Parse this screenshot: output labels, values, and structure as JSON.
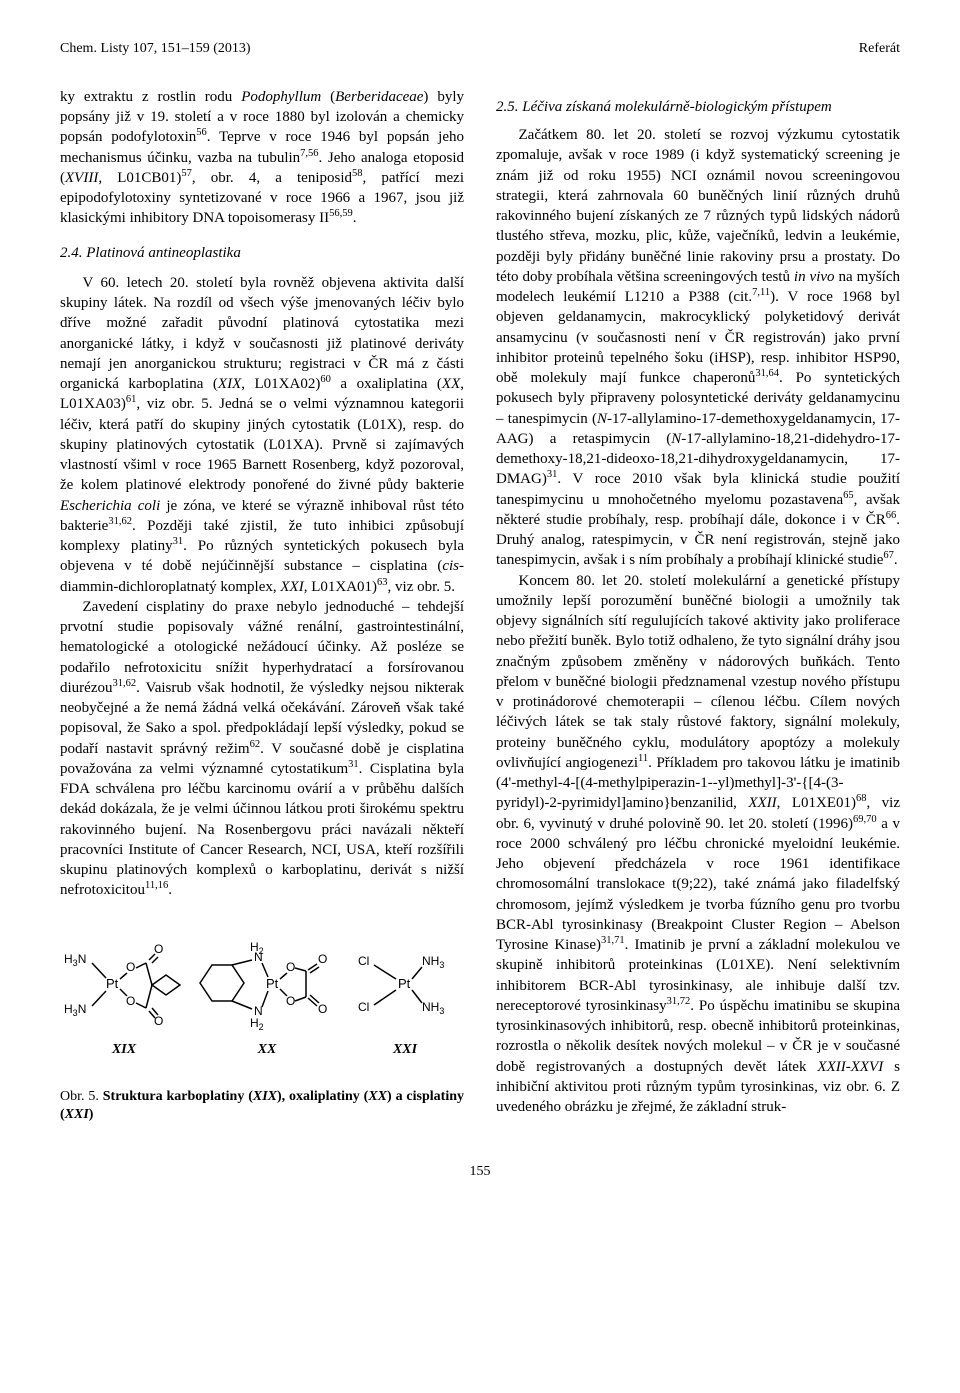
{
  "header": {
    "left": "Chem. Listy 107, 151–159 (2013)",
    "right": "Referát"
  },
  "left_column": {
    "para1_html": "ky extraktu z rostlin rodu <i>Podophyllum</i> (<i>Berberidaceae</i>) byly popsány již v 19. století a v roce 1880 byl izolován a chemicky popsán podofylotoxin<sup>56</sup>. Teprve v roce 1946 byl popsán jeho mechanismus účinku, vazba na tubulin<sup>7,56</sup>. Jeho analoga etoposid (<i>XVIII</i>, L01CB01)<sup>57</sup>, obr. 4, a teniposid<sup>58</sup>, patřící mezi epipodofylotoxiny syntetizované v roce 1966 a 1967, jsou již klasickými inhibitory DNA topoisomerasy II<sup>56,59</sup>.",
    "section24_num": "2.4.",
    "section24_title": "Platinová antineoplastika",
    "para2_html": "V 60. letech 20. století byla rovněž objevena aktivita další skupiny látek. Na rozdíl od všech výše jmenovaných léčiv bylo dříve možné zařadit původní platinová cytostatika mezi anorganické látky, i když v současnosti již platinové deriváty nemají jen anorganickou strukturu; registraci v ČR má z části organická karboplatina (<i>XIX</i>, L01XA02)<sup>60</sup> a oxaliplatina (<i>XX</i>, L01XA03)<sup>61</sup>, viz obr. 5. Jedná se o velmi významnou kategorii léčiv, která patří do skupiny jiných cytostatik (L01X), resp. do skupiny platinových cytostatik (L01XA). Prvně si zajímavých vlastností všiml v roce 1965 Barnett Rosenberg, když pozoroval, že kolem platinové elektrody ponořené do živné půdy bakterie <i>Escherichia coli</i> je zóna, ve které se výrazně inhiboval růst této bakterie<sup>31,62</sup>. Později také zjistil, že tuto inhibici způsobují komplexy platiny<sup>31</sup>. Po různých syntetických pokusech byla objevena v té době nejúčinnější substance – cisplatina (<i>cis</i>-diammin-dichloroplatnatý komplex, <i>XXI</i>, L01XA01)<sup>63</sup>, viz obr. 5.",
    "para3_html": "Zavedení cisplatiny do praxe nebylo jednoduché – tehdejší prvotní studie popisovaly vážné renální, gastrointestinální, hematologické a otologické nežádoucí účinky. Až posléze se podařilo nefrotoxicitu snížit hyperhydratací a forsírovanou diurézou<sup>31,62</sup>. Vaisrub však hodnotil, že výsledky nejsou nikterak neobyčejné a že nemá žádná velká očekávání. Zároveň však také popisoval, že Sako a spol. předpokládají lepší výsledky, pokud se podaří nastavit správný režim<sup>62</sup>. V současné době je cisplatina považována za velmi významné cytostatikum<sup>31</sup>. Cisplatina byla FDA schválena pro léčbu karcinomu ovárií a v průběhu dalších dekád dokázala, že je velmi účinnou látkou proti širokému spektru rakovinného bujení. Na Rosenbergovu práci navázali někteří pracovníci Institute of Cancer Research, NCI, USA, kteří rozšířili skupinu platinových komplexů o karboplatinu, derivát s nižší nefrotoxicitou<sup>11,16</sup>."
  },
  "right_column": {
    "section25_num": "2.5.",
    "section25_title": "Léčiva získaná molekulárně-biologickým přístupem",
    "para1_html": "Začátkem 80. let 20. století se rozvoj výzkumu cytostatik zpomaluje, avšak v roce 1989 (i když systematický screening je znám již od roku 1955) NCI oznámil novou screeningovou strategii, která zahrnovala 60 buněčných linií různých druhů rakovinného bujení získaných ze 7 různých typů lidských nádorů tlustého střeva, mozku, plic, kůže, vaječníků, ledvin a leukémie, později byly přidány buněčné linie rakoviny prsu a prostaty. Do této doby probíhala většina screeningových testů <i>in vivo</i> na myších modelech leukémií L1210 a P388 (cit.<sup>7,11</sup>). V roce 1968 byl objeven geldanamycin, makrocyklický polyketidový derivát ansamycinu (v současnosti není v ČR registrován) jako první inhibitor proteinů tepelného šoku (iHSP), resp. inhibitor HSP90, obě molekuly mají funkce chaperonů<sup>31,64</sup>. Po syntetických pokusech byly připraveny polosyntetické deriváty geldanamycinu – tanespimycin (<i>N</i>-17-allylamino-17-demethoxygeldanamycin, 17-AAG) a retaspimycin (<i>N</i>-17-allylamino-18,21-didehydro-17-demethoxy-18,21-dideoxo-18,21-dihydroxygeldanamycin, 17-DMAG)<sup>31</sup>. V roce 2010 však byla klinická studie použití tanespimycinu u mnohočetného myelomu pozastavena<sup>65</sup>, avšak některé studie probíhaly, resp. probíhají dále, dokonce i v ČR<sup>66</sup>. Druhý analog, ratespimycin, v ČR není registrován, stejně jako tanespimycin, avšak i s ním probíhaly a probíhají klinické studie<sup>67</sup>.",
    "para2_html": "Koncem 80. let 20. století molekulární a genetické přístupy umožnily lepší porozumění buněčné biologii a umožnily tak objevy signálních sítí regulujících takové aktivity jako proliferace nebo přežití buněk. Bylo totiž odhaleno, že tyto signální dráhy jsou značným způsobem změněny v nádorových buňkách. Tento přelom v buněčné biologii předznamenal vzestup nového přístupu v protinádorové chemoterapii – cílenou léčbu. Cílem nových léčivých látek se tak staly růstové faktory, signální molekuly, proteiny buněčného cyklu, modulátory apoptózy a molekuly ovlivňující angiogenezi<sup>11</sup>. Příkladem pro takovou látku je imatinib (4'-methyl-4-[(4-methylpiperazin-1--yl)methyl]-3'-{[4-(3-pyridyl)-2-pyrimidyl]amino}benzanilid, <i>XXII</i>, L01XE01)<sup>68</sup>, viz obr. 6, vyvinutý v druhé polovině 90. let 20. století (1996)<sup>69,70</sup> a v roce 2000 schválený pro léčbu chronické myeloidní leukémie. Jeho objevení předcházela v roce 1961 identifikace chromosomální translokace t(9;22), také známá jako filadelfský chromosom, jejímž výsledkem je tvorba fúzního genu pro tvorbu BCR-Abl tyrosinkinasy (Breakpoint Cluster Region – Abelson Tyrosine Kinase)<sup>31,71</sup>. Imatinib je první a základní molekulou ve skupině inhibitorů proteinkinas (L01XE). Není selektivním inhibitorem BCR-Abl tyrosinkinasy, ale inhibuje další tzv. nereceptorové tyrosinkinasy<sup>31,72</sup>. Po úspěchu imatinibu se skupina tyrosinkinasových inhibitorů, resp. obecně inhibitorů proteinkinas, rozrostla o několik desítek nových molekul – v ČR je v současné době registrovaných a dostupných devět látek <i>XXII-XXVI</i> s inhibiční aktivitou proti různým typům tyrosinkinas, viz obr. 6. Z uvedeného obrázku je zřejmé, že základní struk-"
  },
  "figure": {
    "labels": {
      "xix": "XIX",
      "xx": "XX",
      "xxi": "XXI"
    },
    "caption_html": "Obr. 5. <b>Struktura karboplatiny (<i>XIX</i>), oxaliplatiny (<i>XX</i>) a cisplatiny (<i>XXI</i>)</b>",
    "svg": {
      "stroke": "#000000",
      "stroke_width": 1.5,
      "font_family": "Arial, Helvetica, sans-serif",
      "font_size": 12
    },
    "struct_xix": {
      "atoms": [
        "H3N",
        "H3N",
        "Pt",
        "O",
        "O",
        "O",
        "O"
      ],
      "text_h3n_top": "H",
      "text_h3n_sub": "3",
      "text_n": "N",
      "pt": "Pt",
      "o": "O"
    },
    "struct_xx": {
      "text_h": "H",
      "text_2": "2",
      "text_n": "N",
      "pt": "Pt",
      "o": "O"
    },
    "struct_xxi": {
      "cl": "Cl",
      "pt": "Pt",
      "nh3_n": "NH",
      "nh3_sub": "3"
    }
  },
  "page_number": "155"
}
